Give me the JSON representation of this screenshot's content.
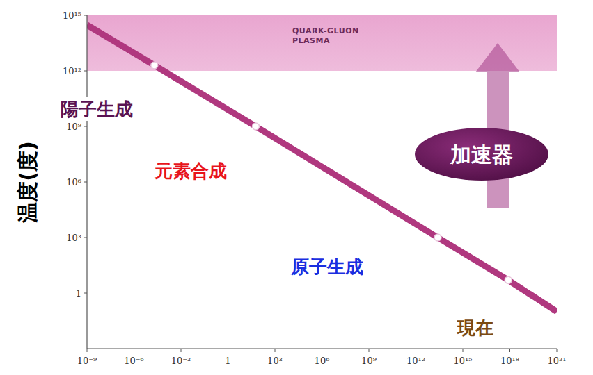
{
  "chart_data": {
    "type": "line",
    "y_label": "温度(度)",
    "x": [
      1e-09,
      2e-05,
      60,
      25000000000000.0,
      8e+17,
      1e+21
    ],
    "series": [
      {
        "color": "#b0387f",
        "values": [
          300000000000000.0,
          2000000000000.0,
          1000000000.0,
          1000,
          5,
          0.1
        ]
      }
    ],
    "xlim": [
      1e-09,
      1e+21
    ],
    "ylim": [
      0.001,
      1000000000000000.0
    ],
    "log": true,
    "grid": false,
    "xticks": [
      {
        "value": 1e-09,
        "label": "10⁻⁹"
      },
      {
        "value": 1e-06,
        "label": "10⁻⁶"
      },
      {
        "value": 0.001,
        "label": "10⁻³"
      },
      1,
      {
        "value": 1000.0,
        "label": "10³"
      },
      {
        "value": 1000000.0,
        "label": "10⁶"
      },
      {
        "value": 1000000000.0,
        "label": "10⁹"
      },
      {
        "value": 1000000000000.0,
        "label": "10¹²"
      },
      {
        "value": 1000000000000000.0,
        "label": "10¹⁵"
      },
      {
        "value": 1e+18,
        "label": "10¹⁸"
      },
      {
        "value": 1e+21,
        "label": "10²¹"
      }
    ],
    "yticks": [
      1,
      {
        "value": 1000.0,
        "label": "10³"
      },
      {
        "value": 1000000.0,
        "label": "10⁶"
      },
      {
        "value": 1000000000.0,
        "label": "10⁹"
      },
      {
        "value": 1000000000000.0,
        "label": "10¹²"
      },
      {
        "value": 1000000000000000.0,
        "label": "10¹⁵"
      }
    ],
    "bands": [
      {
        "from": 1000000000000.0,
        "to": 1000000000000000.0,
        "label": "QUARK-GLUON PLASMA",
        "color": "#e9a6d0"
      }
    ],
    "annotations": [
      {
        "text": "陽子生成",
        "point": 1,
        "color": "#5a1252"
      },
      {
        "text": "元素合成",
        "point": 2,
        "color": "#e8141c"
      },
      {
        "text": "原子生成",
        "point": 3,
        "color": "#1a2ee0"
      },
      {
        "text": "現在",
        "point": 4,
        "color": "#7a4a12"
      }
    ],
    "arrow_label": "加速器"
  }
}
